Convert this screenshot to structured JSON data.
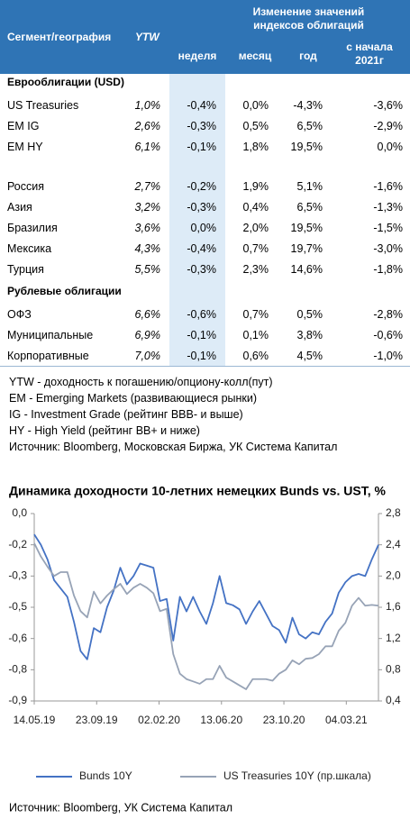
{
  "table": {
    "columns": {
      "segment": "Сегмент/география",
      "ytw": "YTW",
      "group": "Изменение значений индексов облигаций",
      "week": "неделя",
      "month": "месяц",
      "year": "год",
      "ytd": "с начала 2021г"
    },
    "sections": [
      {
        "title": "Еврооблигации (USD)",
        "rows": [
          [
            "US Treasuries",
            "1,0%",
            "-0,4%",
            "0,0%",
            "-4,3%",
            "-3,6%"
          ],
          [
            "EM IG",
            "2,6%",
            "-0,3%",
            "0,5%",
            "6,5%",
            "-2,9%"
          ],
          [
            "EM HY",
            "6,1%",
            "-0,1%",
            "1,8%",
            "19,5%",
            "0,0%"
          ]
        ]
      },
      {
        "rows": [
          [
            "Россия",
            "2,7%",
            "-0,2%",
            "1,9%",
            "5,1%",
            "-1,6%"
          ],
          [
            "Азия",
            "3,2%",
            "-0,3%",
            "0,4%",
            "6,5%",
            "-1,3%"
          ],
          [
            "Бразилия",
            "3,6%",
            "0,0%",
            "2,0%",
            "19,5%",
            "-1,5%"
          ],
          [
            "Мексика",
            "4,3%",
            "-0,4%",
            "0,7%",
            "19,7%",
            "-3,0%"
          ],
          [
            "Турция",
            "5,5%",
            "-0,3%",
            "2,3%",
            "14,6%",
            "-1,8%"
          ]
        ]
      },
      {
        "title": "Рублевые облигации",
        "rows": [
          [
            "ОФЗ",
            "6,6%",
            "-0,6%",
            "0,7%",
            "0,5%",
            "-2,8%"
          ],
          [
            "Муниципальные",
            "6,9%",
            "-0,1%",
            "0,1%",
            "3,8%",
            "-0,6%"
          ],
          [
            "Корпоративные",
            "7,0%",
            "-0,1%",
            "0,6%",
            "4,5%",
            "-1,0%"
          ]
        ]
      }
    ]
  },
  "notes": [
    "YTW - доходность к погашению/опциону-колл(пут)",
    "EM - Emerging Markets (развивающиеся рынки)",
    "IG - Investment Grade (рейтинг BBB- и выше)",
    "HY - High Yield (рейтинг BB+ и ниже)",
    "Источник: Bloomberg, Московская Биржа, УК Система Капитал"
  ],
  "chart_data": {
    "type": "line",
    "title": "Динамика доходности 10-летних немецких Bunds vs. UST, %",
    "x": [
      "14.05.19",
      "28.05.19",
      "11.06.19",
      "25.06.19",
      "09.07.19",
      "23.07.19",
      "06.08.19",
      "20.08.19",
      "03.09.19",
      "17.09.19",
      "01.10.19",
      "15.10.19",
      "29.10.19",
      "12.11.19",
      "26.11.19",
      "10.12.19",
      "24.12.19",
      "07.01.20",
      "21.01.20",
      "04.02.20",
      "18.02.20",
      "03.03.20",
      "17.03.20",
      "31.03.20",
      "14.04.20",
      "28.04.20",
      "12.05.20",
      "26.05.20",
      "09.06.20",
      "23.06.20",
      "07.07.20",
      "21.07.20",
      "04.08.20",
      "18.08.20",
      "01.09.20",
      "15.09.20",
      "29.09.20",
      "13.10.20",
      "27.10.20",
      "10.11.20",
      "24.11.20",
      "08.12.20",
      "22.12.20",
      "05.01.21",
      "19.01.21",
      "02.02.21",
      "16.02.21",
      "02.03.21",
      "16.03.21",
      "30.03.21",
      "13.04.21",
      "27.04.21",
      "11.05.21"
    ],
    "xlim": [
      "14.05.19",
      "11.05.21"
    ],
    "xticks": [
      "14.05.19",
      "23.09.19",
      "02.02.20",
      "13.06.20",
      "23.10.20",
      "04.03.21"
    ],
    "ylim": [
      -0.9,
      0
    ],
    "yticks": [
      {
        "value": 0,
        "label": "0,0"
      },
      {
        "value": -0.15,
        "label": "-0,2"
      },
      {
        "value": -0.3,
        "label": "-0,3"
      },
      {
        "value": -0.45,
        "label": "-0,5"
      },
      {
        "value": -0.6,
        "label": "-0,6"
      },
      {
        "value": -0.75,
        "label": "-0,8"
      },
      {
        "value": -0.9,
        "label": "-0,9"
      }
    ],
    "y2lim": [
      0.4,
      2.8
    ],
    "y2ticks": [
      {
        "value": 2.8,
        "label": "2,8"
      },
      {
        "value": 2.4,
        "label": "2,4"
      },
      {
        "value": 2,
        "label": "2,0"
      },
      {
        "value": 1.6,
        "label": "1,6"
      },
      {
        "value": 1.2,
        "label": "1,2"
      },
      {
        "value": 0.8,
        "label": "0,8"
      },
      {
        "value": 0.4,
        "label": "0,4"
      }
    ],
    "grid": false,
    "legend": "bottom",
    "series": [
      {
        "name": "Bunds 10Y",
        "color": "#4472c4",
        "values": [
          -0.1,
          -0.15,
          -0.22,
          -0.32,
          -0.36,
          -0.4,
          -0.52,
          -0.66,
          -0.7,
          -0.55,
          -0.57,
          -0.45,
          -0.37,
          -0.26,
          -0.34,
          -0.3,
          -0.24,
          -0.25,
          -0.26,
          -0.42,
          -0.41,
          -0.61,
          -0.4,
          -0.47,
          -0.4,
          -0.47,
          -0.53,
          -0.43,
          -0.3,
          -0.43,
          -0.44,
          -0.46,
          -0.53,
          -0.47,
          -0.42,
          -0.48,
          -0.54,
          -0.56,
          -0.62,
          -0.5,
          -0.58,
          -0.6,
          -0.57,
          -0.58,
          -0.52,
          -0.48,
          -0.38,
          -0.33,
          -0.3,
          -0.29,
          -0.3,
          -0.22,
          -0.15
        ]
      },
      {
        "name": "US Treasuries 10Y (пр.шкала)",
        "color": "#97a3b6",
        "axis": "y2",
        "values": [
          2.42,
          2.25,
          2.12,
          2.0,
          2.05,
          2.05,
          1.75,
          1.55,
          1.47,
          1.8,
          1.65,
          1.75,
          1.83,
          1.9,
          1.77,
          1.85,
          1.9,
          1.85,
          1.78,
          1.55,
          1.58,
          1.0,
          0.75,
          0.68,
          0.65,
          0.62,
          0.68,
          0.68,
          0.85,
          0.7,
          0.65,
          0.6,
          0.55,
          0.68,
          0.68,
          0.68,
          0.66,
          0.75,
          0.8,
          0.92,
          0.87,
          0.94,
          0.95,
          1.0,
          1.1,
          1.1,
          1.3,
          1.4,
          1.62,
          1.72,
          1.62,
          1.63,
          1.62
        ]
      }
    ],
    "source": "Источник: Bloomberg, УК Система Капитал"
  }
}
